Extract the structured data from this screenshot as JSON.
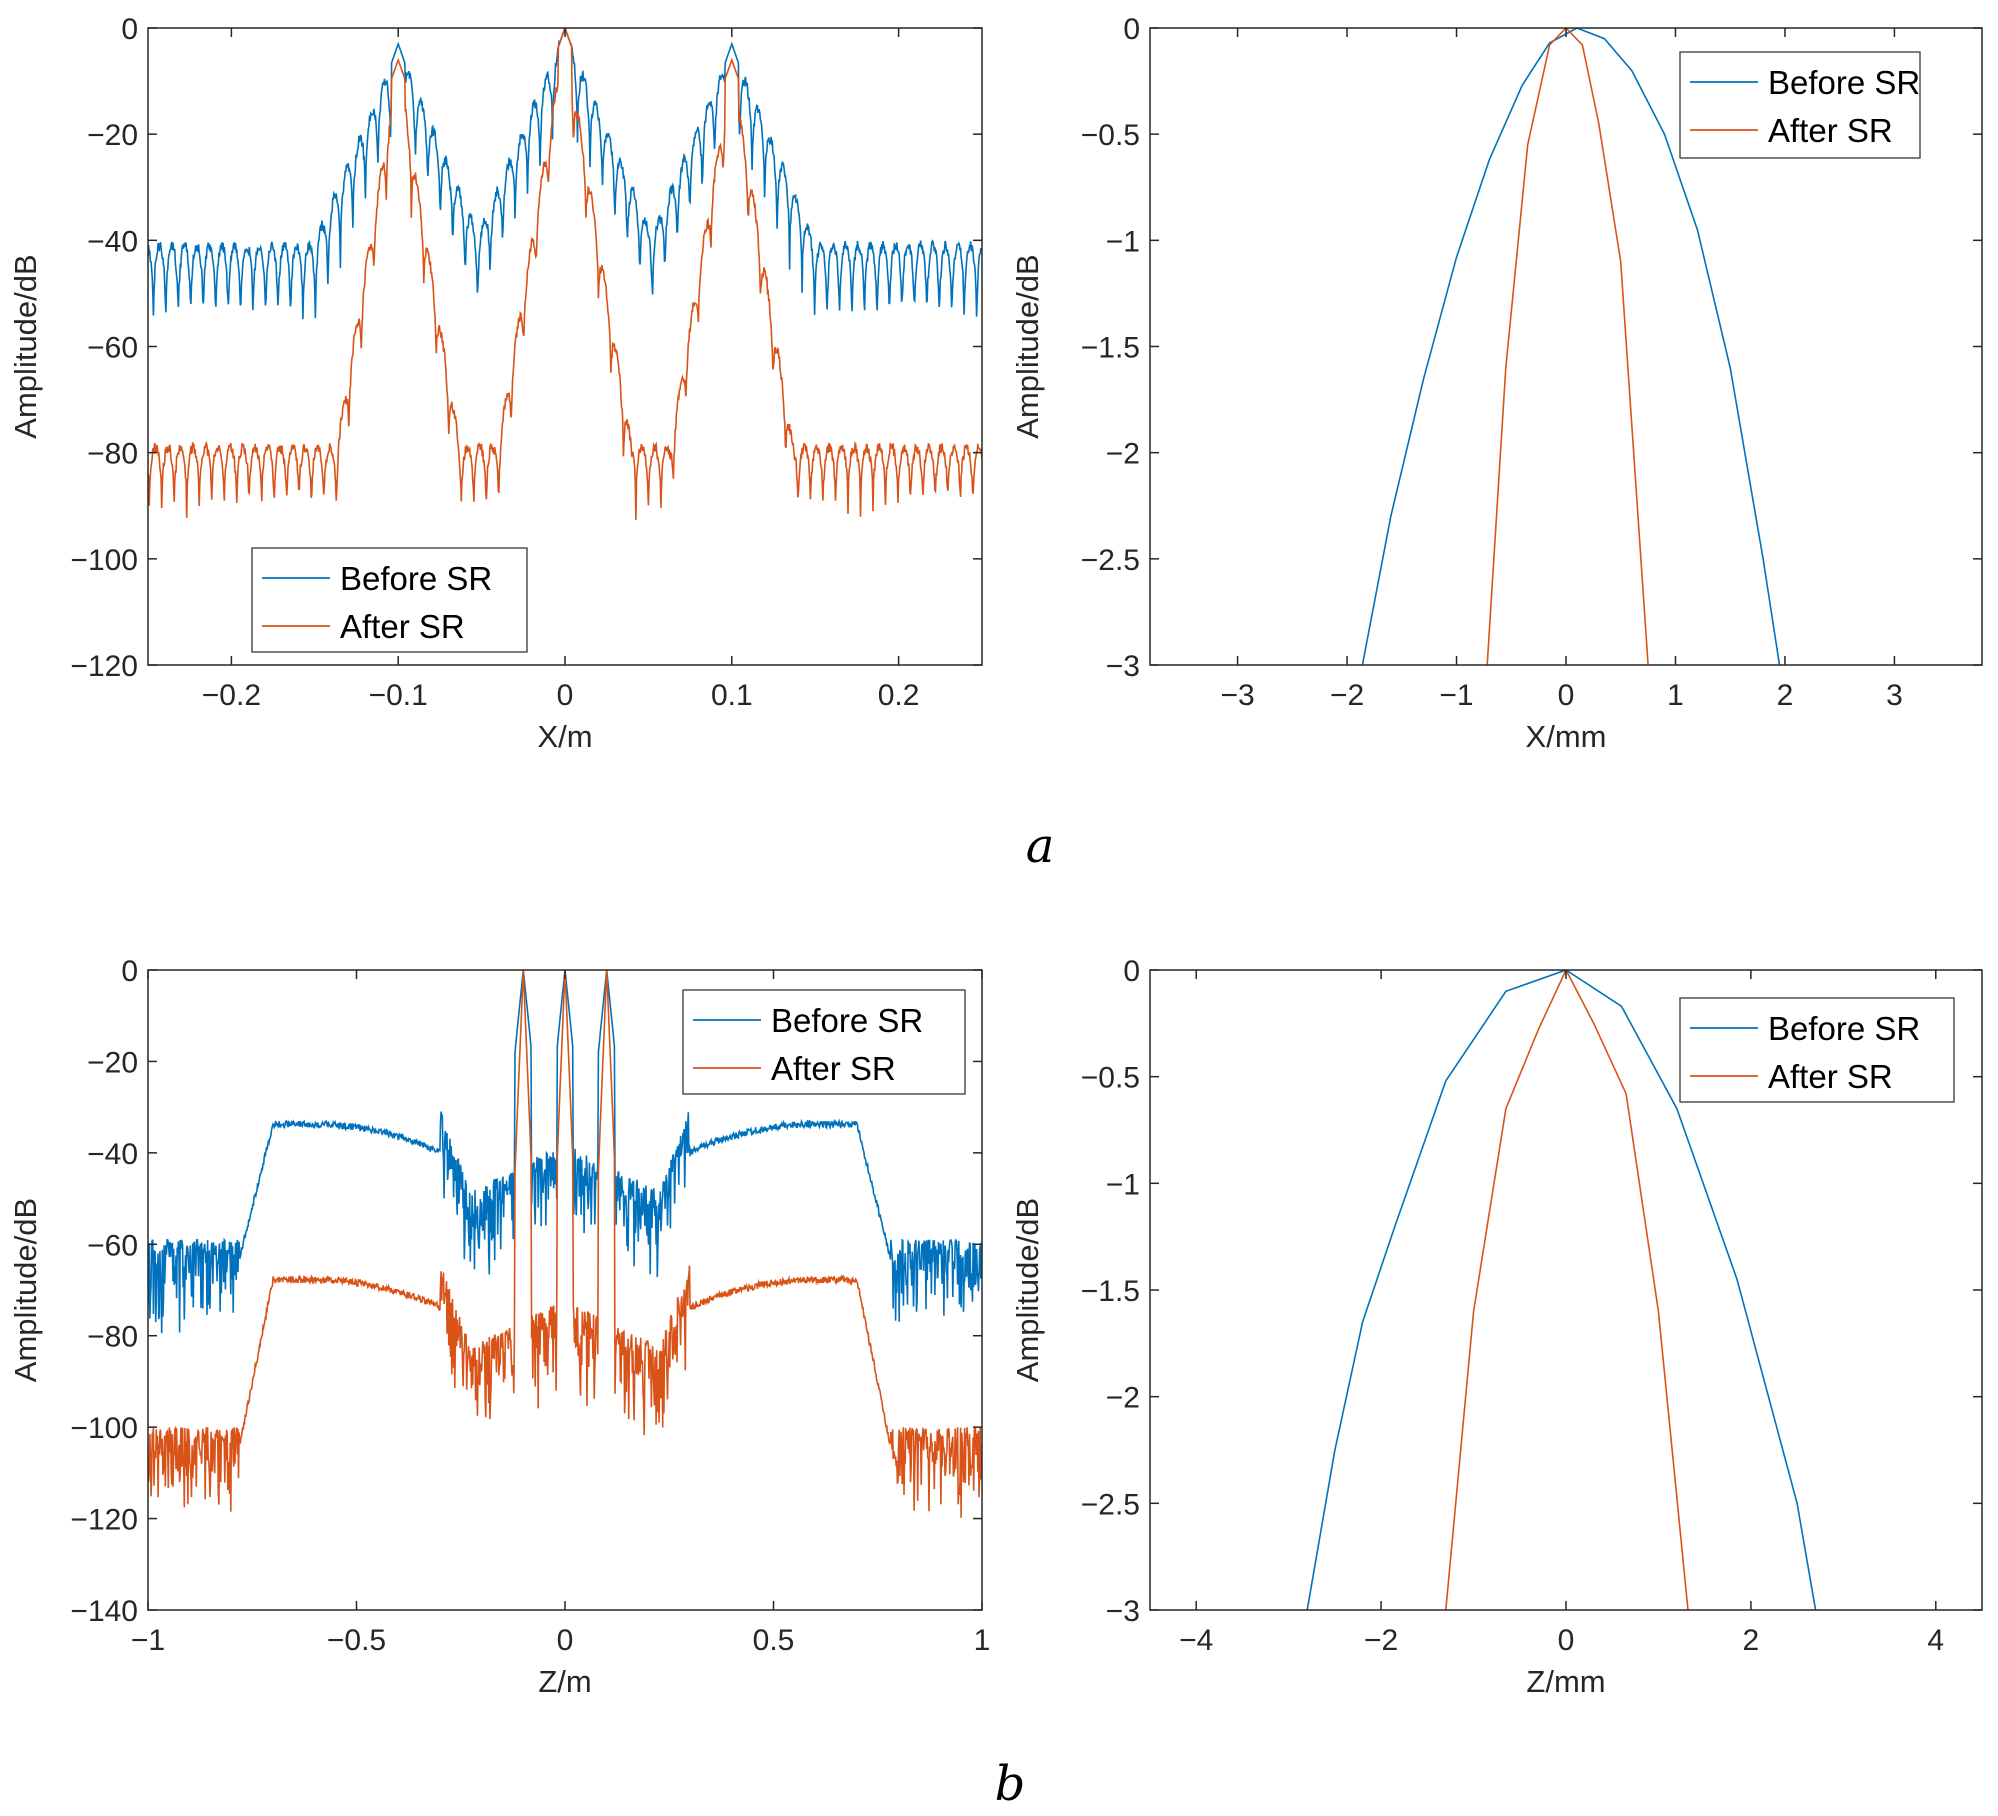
{
  "chart_data": [
    {
      "type": "line",
      "panel": "a-left",
      "xlabel": "X/m",
      "ylabel": "Amplitude/dB",
      "xlim": [
        -0.25,
        0.25
      ],
      "ylim": [
        -120,
        0
      ],
      "xticks": [
        -0.2,
        -0.1,
        0,
        0.1,
        0.2
      ],
      "xtick_labels": [
        "−0.2",
        "−0.1",
        "0",
        "0.1",
        "0.2"
      ],
      "yticks": [
        0,
        -20,
        -40,
        -60,
        -80,
        -100,
        -120
      ],
      "ytick_labels": [
        "0",
        "−20",
        "−40",
        "−60",
        "−80",
        "−100",
        "−120"
      ],
      "legend_position": "bottom-left",
      "series": [
        {
          "name": "Before SR",
          "color": "#0072BD",
          "peaks": [
            -0.1,
            0,
            0.1
          ],
          "peak_levels": [
            -3,
            0,
            -3
          ],
          "floor": -42
        },
        {
          "name": "After SR",
          "color": "#D95319",
          "peaks": [
            -0.1,
            0,
            0.1
          ],
          "peak_levels": [
            -6,
            0,
            -6
          ],
          "floor": -82
        }
      ]
    },
    {
      "type": "line",
      "panel": "a-right",
      "xlabel": "X/mm",
      "ylabel": "Amplitude/dB",
      "xlim": [
        -3.8,
        3.8
      ],
      "ylim": [
        -3,
        0
      ],
      "xticks": [
        -3,
        -2,
        -1,
        0,
        1,
        2,
        3
      ],
      "xtick_labels": [
        "−3",
        "−2",
        "−1",
        "0",
        "1",
        "2",
        "3"
      ],
      "yticks": [
        0,
        -0.5,
        -1,
        -1.5,
        -2,
        -2.5,
        -3
      ],
      "ytick_labels": [
        "0",
        "−0.5",
        "−1",
        "−1.5",
        "−2",
        "−2.5",
        "−3"
      ],
      "legend_position": "top-right",
      "series": [
        {
          "name": "Before SR",
          "color": "#0072BD",
          "x": [
            -1.86,
            -1.6,
            -1.3,
            -1.0,
            -0.7,
            -0.4,
            -0.15,
            0.1,
            0.35,
            0.6,
            0.9,
            1.2,
            1.5,
            1.8,
            1.95
          ],
          "y": [
            -3,
            -2.3,
            -1.65,
            -1.08,
            -0.62,
            -0.27,
            -0.07,
            0,
            -0.05,
            -0.2,
            -0.5,
            -0.95,
            -1.6,
            -2.5,
            -3
          ]
        },
        {
          "name": "After SR",
          "color": "#D95319",
          "x": [
            -0.72,
            -0.55,
            -0.35,
            -0.15,
            0,
            0.15,
            0.3,
            0.5,
            0.75
          ],
          "y": [
            -3,
            -1.6,
            -0.55,
            -0.08,
            0,
            -0.08,
            -0.45,
            -1.1,
            -3
          ]
        }
      ]
    },
    {
      "type": "line",
      "panel": "b-left",
      "xlabel": "Z/m",
      "ylabel": "Amplitude/dB",
      "xlim": [
        -1,
        1
      ],
      "ylim": [
        -140,
        0
      ],
      "xticks": [
        -1,
        -0.5,
        0,
        0.5,
        1
      ],
      "xtick_labels": [
        "−1",
        "−0.5",
        "0",
        "0.5",
        "1"
      ],
      "yticks": [
        0,
        -20,
        -40,
        -60,
        -80,
        -100,
        -120,
        -140
      ],
      "ytick_labels": [
        "0",
        "−20",
        "−40",
        "−60",
        "−80",
        "−100",
        "−120",
        "−140"
      ],
      "legend_position": "top-right",
      "series": [
        {
          "name": "Before SR",
          "color": "#0072BD",
          "peaks": [
            -0.1,
            0,
            0.1
          ],
          "peak_levels": [
            0,
            0,
            0
          ],
          "plateau": -33,
          "floor": -62
        },
        {
          "name": "After SR",
          "color": "#D95319",
          "peaks": [
            -0.1,
            0,
            0.1
          ],
          "peak_levels": [
            0,
            0,
            0
          ],
          "plateau": -67,
          "floor": -103
        }
      ]
    },
    {
      "type": "line",
      "panel": "b-right",
      "xlabel": "Z/mm",
      "ylabel": "Amplitude/dB",
      "xlim": [
        -4.5,
        4.5
      ],
      "ylim": [
        -3,
        0
      ],
      "xticks": [
        -4,
        -2,
        0,
        2,
        4
      ],
      "xtick_labels": [
        "−4",
        "−2",
        "0",
        "2",
        "4"
      ],
      "yticks": [
        0,
        -0.5,
        -1,
        -1.5,
        -2,
        -2.5,
        -3
      ],
      "ytick_labels": [
        "0",
        "−0.5",
        "−1",
        "−1.5",
        "−2",
        "−2.5",
        "−3"
      ],
      "legend_position": "top-right",
      "series": [
        {
          "name": "Before SR",
          "color": "#0072BD",
          "x": [
            -2.8,
            -2.5,
            -2.2,
            -1.85,
            -1.3,
            -0.65,
            0,
            0.6,
            1.2,
            1.85,
            2.5,
            2.7
          ],
          "y": [
            -3,
            -2.25,
            -1.65,
            -1.2,
            -0.52,
            -0.1,
            0,
            -0.17,
            -0.65,
            -1.45,
            -2.5,
            -3
          ]
        },
        {
          "name": "After SR",
          "color": "#D95319",
          "x": [
            -1.3,
            -1.0,
            -0.65,
            -0.3,
            0,
            0.3,
            0.65,
            1.0,
            1.32
          ],
          "y": [
            -3,
            -1.6,
            -0.65,
            -0.28,
            0,
            -0.25,
            -0.58,
            -1.6,
            -3
          ]
        }
      ]
    }
  ],
  "captions": {
    "a": "a",
    "b": "b"
  }
}
